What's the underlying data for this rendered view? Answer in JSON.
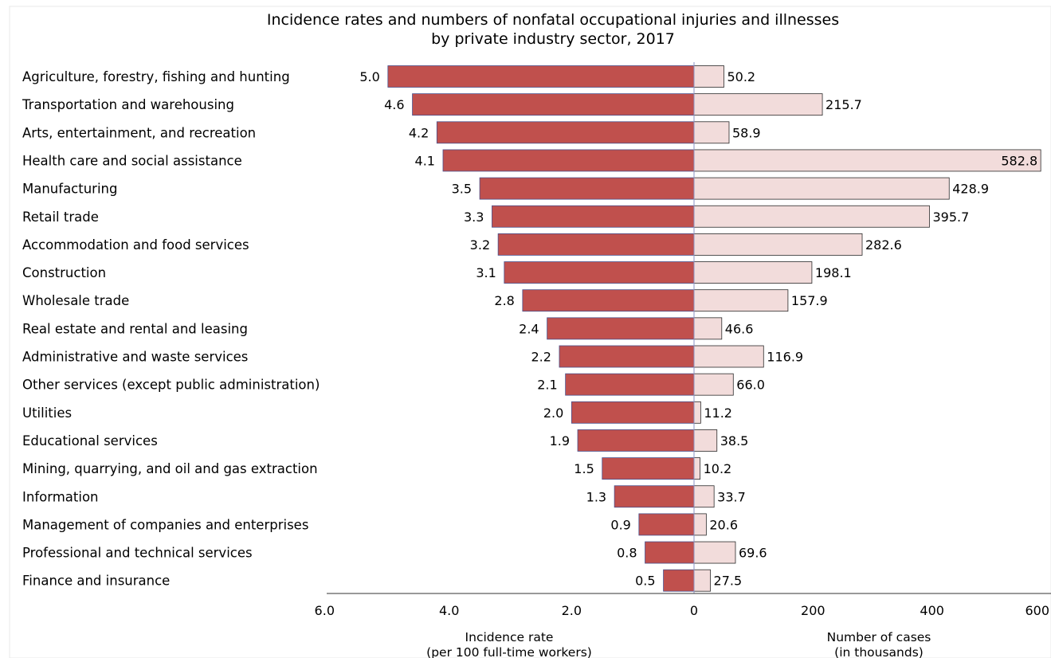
{
  "chart_data": {
    "type": "bar",
    "title_lines": [
      "Incidence rates and numbers of nonfatal occupational injuries and illnesses",
      "by private industry sector, 2017"
    ],
    "categories": [
      "Agriculture, forestry, fishing and hunting",
      "Transportation and warehousing",
      "Arts, entertainment, and recreation",
      "Health care and social assistance",
      "Manufacturing",
      "Retail trade",
      "Accommodation and food services",
      "Construction",
      "Wholesale trade",
      "Real estate and rental and leasing",
      "Administrative and waste services",
      "Other services (except public administration)",
      "Utilities",
      "Educational services",
      "Mining, quarrying, and oil and gas extraction",
      "Information",
      "Management of companies and enterprises",
      "Professional and technical services",
      "Finance and insurance"
    ],
    "series": [
      {
        "values": [
          5.0,
          4.6,
          4.2,
          4.1,
          3.5,
          3.3,
          3.2,
          3.1,
          2.8,
          2.4,
          2.2,
          2.1,
          2.0,
          1.9,
          1.5,
          1.3,
          0.9,
          0.8,
          0.5
        ],
        "labels": [
          "5.0",
          "4.6",
          "4.2",
          "4.1",
          "3.5",
          "3.3",
          "3.2",
          "3.1",
          "2.8",
          "2.4",
          "2.2",
          "2.1",
          "2.0",
          "1.9",
          "1.5",
          "1.3",
          "0.9",
          "0.8",
          "0.5"
        ],
        "color": "#c0504d"
      },
      {
        "values": [
          50.2,
          215.7,
          58.9,
          582.8,
          428.9,
          395.7,
          282.6,
          198.1,
          157.9,
          46.6,
          116.9,
          66.0,
          11.2,
          38.5,
          10.2,
          33.7,
          20.6,
          69.6,
          27.5
        ],
        "labels": [
          "50.2",
          "215.7",
          "58.9",
          "582.8",
          "428.9",
          "395.7",
          "282.6",
          "198.1",
          "157.9",
          "46.6",
          "116.9",
          "66.0",
          "11.2",
          "38.5",
          "10.2",
          "33.7",
          "20.6",
          "69.6",
          "27.5"
        ],
        "color": "#f2dcdb"
      }
    ],
    "left_axis": {
      "xlim": [
        6.0,
        0
      ],
      "ticks": [
        "6.0",
        "4.0",
        "2.0",
        "0"
      ],
      "title_lines": [
        "Incidence rate",
        "(per 100 full-time workers)"
      ]
    },
    "right_axis": {
      "xlim": [
        0,
        600
      ],
      "ticks": [
        "200",
        "400",
        "600"
      ],
      "title_lines": [
        "Number of cases",
        "(in thousands)"
      ]
    },
    "grid": false,
    "legend": "none"
  }
}
